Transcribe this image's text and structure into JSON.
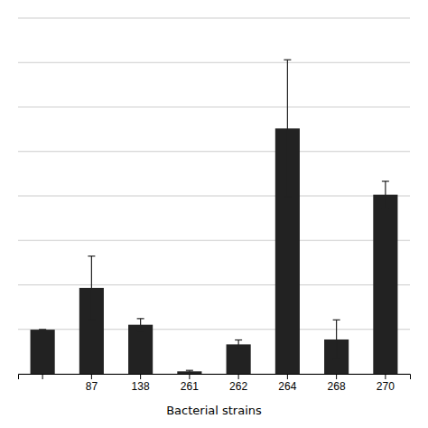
{
  "chart_data": {
    "type": "bar",
    "xlabel": "Bacterial strains",
    "categories": [
      null,
      "87",
      "138",
      "261",
      "262",
      "264",
      "268",
      "270"
    ],
    "values": [
      0.18,
      0.35,
      0.2,
      0.01,
      0.12,
      1.0,
      0.14,
      0.73
    ],
    "errors": [
      0.0,
      0.13,
      0.025,
      0.004,
      0.018,
      0.28,
      0.08,
      0.055
    ],
    "color": "#222222",
    "ylim": [
      0,
      1.45
    ],
    "yticks": [
      0,
      0.18125,
      0.3625,
      0.54375,
      0.725,
      0.90625,
      1.0875,
      1.26875,
      1.45
    ],
    "grid": true,
    "tick_labels": "x"
  }
}
